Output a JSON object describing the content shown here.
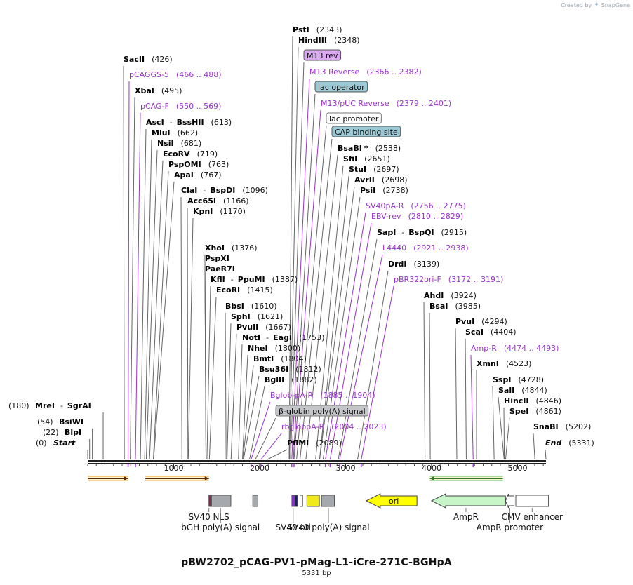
{
  "credit": {
    "prefix": "Created by",
    "app": "SnapGene",
    "logo_icon": "snapgene-logo-icon"
  },
  "plasmid": {
    "name": "pBW2702_pCAG-PV1-pMag-L1-iCre-271C-BGHpA",
    "length_label": "5331 bp",
    "length": 5331
  },
  "scale": {
    "ticks": [
      1000,
      2000,
      3000,
      4000,
      5000
    ],
    "minor_step": 100
  },
  "colors": {
    "enzyme": "#000000",
    "primer": "#9933cc",
    "line": "#555555"
  },
  "labels": [
    {
      "kind": "enzyme",
      "text": "SacII",
      "pos": "(426)",
      "site": 426
    },
    {
      "kind": "primer",
      "text": "pCAGGS-5",
      "pos": "(466 .. 488)",
      "site": 470
    },
    {
      "kind": "enzyme",
      "text": "XbaI",
      "pos": "(495)",
      "site": 495
    },
    {
      "kind": "primer",
      "text": "pCAG-F",
      "pos": "(550 .. 569)",
      "site": 555
    },
    {
      "kind": "enzyme",
      "text": "AscI",
      "sep": "-",
      "text2": "BssHII",
      "pos": "(613)",
      "site": 613
    },
    {
      "kind": "enzyme",
      "text": "MluI",
      "pos": "(662)",
      "site": 662
    },
    {
      "kind": "enzyme",
      "text": "NsiI",
      "pos": "(681)",
      "site": 681
    },
    {
      "kind": "enzyme",
      "text": "EcoRV",
      "pos": "(719)",
      "site": 719
    },
    {
      "kind": "enzyme",
      "text": "PspOMI",
      "pos": "(763)",
      "site": 763
    },
    {
      "kind": "enzyme",
      "text": "ApaI",
      "pos": "(767)",
      "site": 767
    },
    {
      "kind": "enzyme",
      "text": "ClaI",
      "sep": "-",
      "text2": "BspDI",
      "pos": "(1096)",
      "site": 1096
    },
    {
      "kind": "enzyme",
      "text": "Acc65I",
      "pos": "(1166)",
      "site": 1166
    },
    {
      "kind": "enzyme",
      "text": "KpnI",
      "pos": "(1170)",
      "site": 1170
    },
    {
      "kind": "enzyme",
      "text": "XhoI",
      "pos": "(1376)",
      "site": 1376
    },
    {
      "kind": "enzyme",
      "text": "PspXI",
      "pos": "",
      "site": 1376
    },
    {
      "kind": "enzyme",
      "text": "PaeR7I",
      "pos": "",
      "site": 1376
    },
    {
      "kind": "enzyme",
      "text": "KflI",
      "sep": "-",
      "text2": "PpuMI",
      "pos": "(1387)",
      "site": 1387
    },
    {
      "kind": "enzyme",
      "text": "EcoRI",
      "pos": "(1415)",
      "site": 1415
    },
    {
      "kind": "enzyme",
      "text": "BbsI",
      "pos": "(1610)",
      "site": 1610
    },
    {
      "kind": "enzyme",
      "text": "SphI",
      "pos": "(1621)",
      "site": 1621
    },
    {
      "kind": "enzyme",
      "text": "PvuII",
      "pos": "(1667)",
      "site": 1667
    },
    {
      "kind": "enzyme",
      "text": "NotI",
      "sep": "-",
      "text2": "EagI",
      "pos": "(1753)",
      "site": 1753
    },
    {
      "kind": "enzyme",
      "text": "NheI",
      "pos": "(1800)",
      "site": 1800
    },
    {
      "kind": "enzyme",
      "text": "BmtI",
      "pos": "(1804)",
      "site": 1804
    },
    {
      "kind": "enzyme",
      "text": "Bsu36I",
      "pos": "(1812)",
      "site": 1812
    },
    {
      "kind": "enzyme",
      "text": "BglII",
      "pos": "(1882)",
      "site": 1882
    },
    {
      "kind": "primer",
      "text": "Bglob-pA-R",
      "pos": "(1885 .. 1904)",
      "site": 1900
    },
    {
      "kind": "feature_grey",
      "text": "β-globin poly(A) signal",
      "pos": "",
      "site": 1950
    },
    {
      "kind": "primer",
      "text": "rbglobpA-R",
      "pos": "(2004 .. 2023)",
      "site": 2015
    },
    {
      "kind": "enzyme",
      "text": "PflMI",
      "pos": "(2089)",
      "site": 2089
    },
    {
      "kind": "enzyme",
      "text": "PstI",
      "pos": "(2343)",
      "site": 2343
    },
    {
      "kind": "enzyme",
      "text": "HindIII",
      "pos": "(2348)",
      "site": 2348
    },
    {
      "kind": "feature_purple",
      "text": "M13 rev",
      "pos": "",
      "site": 2360
    },
    {
      "kind": "primer",
      "text": "M13 Reverse",
      "pos": "(2366 .. 2382)",
      "site": 2374
    },
    {
      "kind": "feature_blue",
      "text": "lac operator",
      "pos": "",
      "site": 2392
    },
    {
      "kind": "primer",
      "text": "M13/pUC Reverse",
      "pos": "(2379 .. 2401)",
      "site": 2400
    },
    {
      "kind": "feature_white",
      "text": "lac promoter",
      "pos": "",
      "site": 2430
    },
    {
      "kind": "feature_blue",
      "text": "CAP binding site",
      "pos": "",
      "site": 2470
    },
    {
      "kind": "enzyme",
      "text": "BsaBI",
      "star": "*",
      "pos": "(2538)",
      "site": 2538
    },
    {
      "kind": "enzyme",
      "text": "SfiI",
      "pos": "(2651)",
      "site": 2651
    },
    {
      "kind": "enzyme",
      "text": "StuI",
      "pos": "(2697)",
      "site": 2697
    },
    {
      "kind": "enzyme",
      "text": "AvrII",
      "pos": "(2698)",
      "site": 2698
    },
    {
      "kind": "enzyme",
      "text": "PsiI",
      "pos": "(2738)",
      "site": 2738
    },
    {
      "kind": "primer",
      "text": "SV40pA-R",
      "pos": "(2756 .. 2775)",
      "site": 2765
    },
    {
      "kind": "primer",
      "text": "EBV-rev",
      "pos": "(2810 .. 2829)",
      "site": 2820
    },
    {
      "kind": "enzyme",
      "text": "SapI",
      "sep": "-",
      "text2": "BspQI",
      "pos": "(2915)",
      "site": 2915
    },
    {
      "kind": "primer",
      "text": "L4440",
      "pos": "(2921 .. 2938)",
      "site": 2930
    },
    {
      "kind": "enzyme",
      "text": "DrdI",
      "pos": "(3139)",
      "site": 3139
    },
    {
      "kind": "primer",
      "text": "pBR322ori-F",
      "pos": "(3172 .. 3191)",
      "site": 3182
    },
    {
      "kind": "enzyme",
      "text": "AhdI",
      "pos": "(3924)",
      "site": 3924
    },
    {
      "kind": "enzyme",
      "text": "BsaI",
      "pos": "(3985)",
      "site": 3985
    },
    {
      "kind": "enzyme",
      "text": "PvuI",
      "pos": "(4294)",
      "site": 4294
    },
    {
      "kind": "enzyme",
      "text": "ScaI",
      "pos": "(4404)",
      "site": 4404
    },
    {
      "kind": "primer",
      "text": "Amp-R",
      "pos": "(4474 .. 4493)",
      "site": 4484
    },
    {
      "kind": "enzyme",
      "text": "XmnI",
      "pos": "(4523)",
      "site": 4523
    },
    {
      "kind": "enzyme",
      "text": "SspI",
      "pos": "(4728)",
      "site": 4728
    },
    {
      "kind": "enzyme",
      "text": "SalI",
      "pos": "(4844)",
      "site": 4844
    },
    {
      "kind": "enzyme",
      "text": "HincII",
      "pos": "(4846)",
      "site": 4846
    },
    {
      "kind": "enzyme",
      "text": "SpeI",
      "pos": "(4861)",
      "site": 4861
    },
    {
      "kind": "enzyme",
      "text": "SnaBI",
      "pos": "(5202)",
      "site": 5202
    },
    {
      "kind": "end",
      "text": "End",
      "pos": "(5331)",
      "site": 5331
    },
    {
      "kind": "enzyme",
      "text": "MreI",
      "sep": "-",
      "text2": "SgrAI",
      "pos": "(180)",
      "site": 180,
      "pos_left": true
    },
    {
      "kind": "enzyme",
      "text": "BsiWI",
      "pos": "(54)",
      "site": 54,
      "pos_left": true
    },
    {
      "kind": "enzyme",
      "text": "BlpI",
      "pos": "(22)",
      "site": 22,
      "pos_left": true
    },
    {
      "kind": "end",
      "text": "Start",
      "pos": "(0)",
      "site": 0,
      "pos_left": true
    }
  ],
  "features": [
    {
      "name": "SV40 NLS",
      "start": 1410,
      "end": 1430,
      "color": "#8b2252",
      "type": "box"
    },
    {
      "name": "bGH poly(A) signal",
      "start": 1440,
      "end": 1665,
      "color": "#a5a9ae",
      "type": "box"
    },
    {
      "name": "",
      "start": 1920,
      "end": 1980,
      "color": "#a5a9ae",
      "type": "box"
    },
    {
      "name": "SV40 ori",
      "start": 2375,
      "end": 2410,
      "color": "#8a2be2",
      "type": "box"
    },
    {
      "name": "",
      "start": 2410,
      "end": 2440,
      "color": "#1a1a66",
      "type": "box"
    },
    {
      "name": "",
      "start": 2470,
      "end": 2500,
      "color": "#ffffff",
      "type": "box"
    },
    {
      "name": "",
      "start": 2550,
      "end": 2695,
      "color": "#f0ea1a",
      "type": "box"
    },
    {
      "name": "SV40 poly(A) signal",
      "start": 2720,
      "end": 2870,
      "color": "#a5a9ae",
      "type": "box"
    },
    {
      "name": "ori",
      "start": 3240,
      "end": 3830,
      "color": "#ffff00",
      "type": "arrow_left"
    },
    {
      "name": "AmpR",
      "start": 4000,
      "end": 4860,
      "color": "#c8f5c8",
      "type": "arrow_left"
    },
    {
      "name": "AmpR promoter",
      "start": 4860,
      "end": 4960,
      "color": "#ffffff",
      "type": "arrow_left"
    },
    {
      "name": "CMV enhancer",
      "start": 4980,
      "end": 5360,
      "color": "#ffffff",
      "type": "box"
    }
  ],
  "orfs": [
    {
      "start": 0,
      "end": 470,
      "direction": "right",
      "color": "#e8a030"
    },
    {
      "start": 670,
      "end": 1410,
      "direction": "right",
      "color": "#e8a030"
    },
    {
      "start": 3980,
      "end": 4830,
      "direction": "left",
      "color": "#5cb85c"
    }
  ],
  "feature_captions": [
    {
      "text": "SV40 NLS",
      "row": 1,
      "anchor_site": 1410
    },
    {
      "text": "bGH poly(A) signal",
      "row": 2,
      "anchor_site": 1545
    },
    {
      "text": "SV40 ori",
      "row": 2,
      "anchor_site": 2390
    },
    {
      "text": "SV40 poly(A) signal",
      "row": 2,
      "anchor_site": 2800
    },
    {
      "text": "AmpR",
      "row": 1,
      "anchor_site": 4400
    },
    {
      "text": "AmpR promoter",
      "row": 2,
      "anchor_site": 4910
    },
    {
      "text": "CMV enhancer",
      "row": 1,
      "anchor_site": 5170
    }
  ]
}
